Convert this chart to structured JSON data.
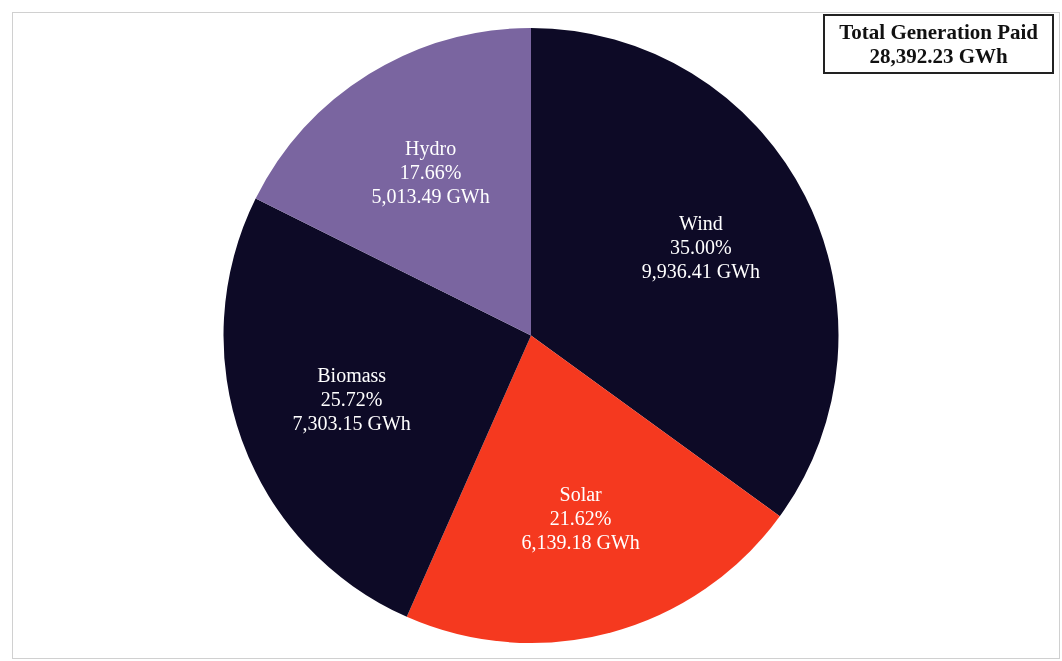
{
  "chart_data": {
    "type": "pie",
    "title": "Total Generation Paid",
    "subtitle": "28,392.23 GWh",
    "categories": [
      "Wind",
      "Solar",
      "Biomass",
      "Hydro"
    ],
    "values": [
      9936.41,
      6139.18,
      7303.15,
      5013.49
    ],
    "colors": [
      "#0d0a26",
      "#f5391f",
      "#0d0a26",
      "#7a65a0"
    ],
    "value_labels": [
      "35.00%\n9,936.41 GWh",
      "21.62%\n6,139.18 GWh",
      "25.72%\n7,303.15 GWh",
      "17.66%\n5,013.49 GWh"
    ]
  }
}
